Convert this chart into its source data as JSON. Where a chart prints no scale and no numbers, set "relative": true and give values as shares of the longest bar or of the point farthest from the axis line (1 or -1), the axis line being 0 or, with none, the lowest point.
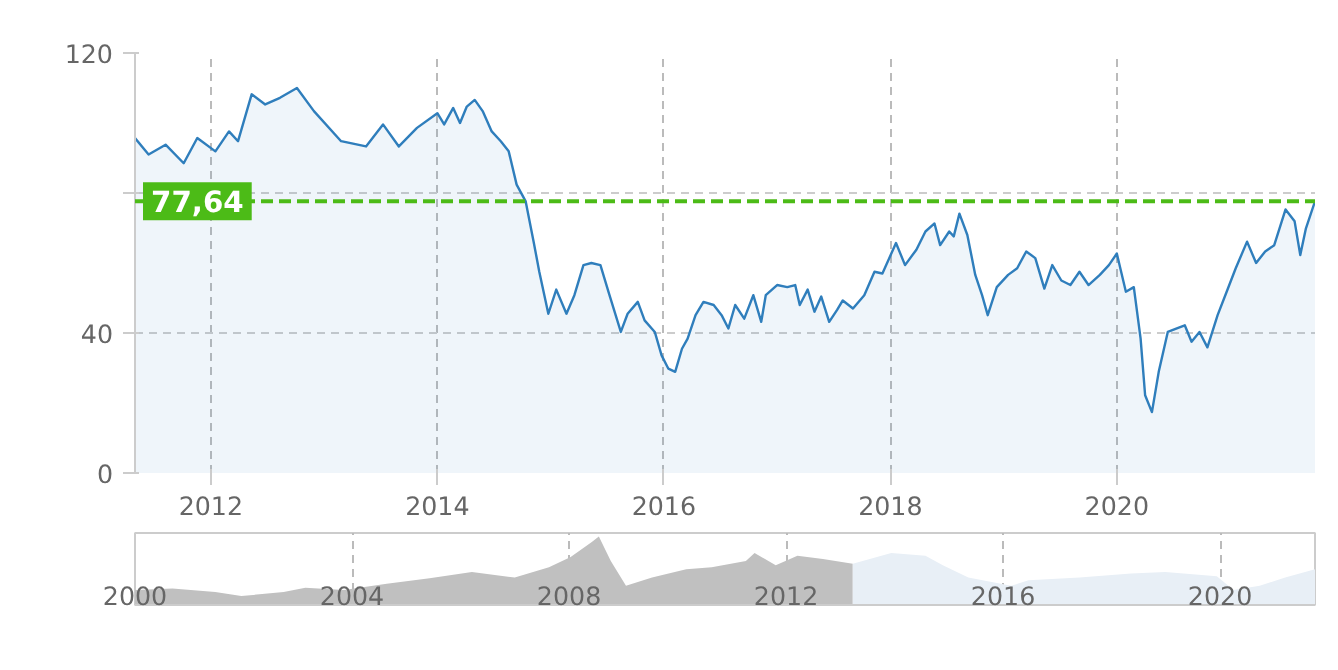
{
  "chart_data": [
    {
      "type": "area",
      "x": [
        2011.33,
        2011.45,
        2011.6,
        2011.76,
        2011.88,
        2012.04,
        2012.16,
        2012.24,
        2012.36,
        2012.48,
        2012.61,
        2012.76,
        2012.91,
        2013.15,
        2013.37,
        2013.52,
        2013.66,
        2013.82,
        2014.0,
        2014.06,
        2014.14,
        2014.2,
        2014.26,
        2014.33,
        2014.4,
        2014.48,
        2014.56,
        2014.63,
        2014.7,
        2014.78,
        2014.85,
        2014.9,
        2014.98,
        2015.05,
        2015.14,
        2015.21,
        2015.29,
        2015.36,
        2015.44,
        2015.52,
        2015.62,
        2015.68,
        2015.77,
        2015.83,
        2015.92,
        2015.98,
        2016.04,
        2016.1,
        2016.16,
        2016.21,
        2016.28,
        2016.35,
        2016.44,
        2016.51,
        2016.57,
        2016.63,
        2016.71,
        2016.79,
        2016.86,
        2016.9,
        2017.0,
        2017.09,
        2017.16,
        2017.2,
        2017.27,
        2017.33,
        2017.39,
        2017.46,
        2017.53,
        2017.58,
        2017.67,
        2017.77,
        2017.86,
        2017.93,
        2018.05,
        2018.13,
        2018.23,
        2018.31,
        2018.39,
        2018.44,
        2018.52,
        2018.56,
        2018.61,
        2018.68,
        2018.75,
        2018.81,
        2018.86,
        2018.94,
        2019.04,
        2019.12,
        2019.2,
        2019.28,
        2019.36,
        2019.43,
        2019.51,
        2019.59,
        2019.67,
        2019.75,
        2019.85,
        2019.93,
        2020.0,
        2020.08,
        2020.15,
        2020.21,
        2020.25,
        2020.31,
        2020.37,
        2020.45,
        2020.53,
        2020.6,
        2020.66,
        2020.73,
        2020.8,
        2020.89,
        2020.97,
        2021.05,
        2021.15,
        2021.23,
        2021.31,
        2021.39,
        2021.49,
        2021.57,
        2021.62,
        2021.67,
        2021.75
      ],
      "series": [
        {
          "color": "#2f7ebc",
          "values": [
            95.7,
            91,
            93.8,
            88.5,
            95.7,
            91.9,
            97.6,
            94.8,
            108.2,
            105.3,
            107.2,
            110,
            103.4,
            94.8,
            93.3,
            99.6,
            93.3,
            98.6,
            102.8,
            99.6,
            104.3,
            100,
            104.7,
            106.6,
            103.4,
            97.6,
            94.8,
            91.9,
            82.4,
            77.6,
            66.1,
            57.5,
            45.5,
            52.4,
            45.5,
            50.8,
            59.4,
            60,
            59.4,
            50.8,
            40.3,
            45.5,
            48.9,
            43.6,
            40.3,
            33.6,
            29.8,
            28.9,
            35.5,
            38.4,
            45.1,
            48.9,
            48,
            45.1,
            41.3,
            48,
            44.1,
            50.8,
            43.2,
            50.8,
            53.7,
            53.1,
            53.7,
            48,
            52.4,
            46.1,
            50.4,
            43.2,
            46.6,
            49.3,
            47,
            50.8,
            57.5,
            57,
            65.7,
            59.4,
            63.8,
            69,
            71.3,
            65.1,
            69,
            67.6,
            74.1,
            68,
            56.6,
            50.8,
            45.1,
            53.1,
            56.6,
            58.5,
            63.3,
            61.4,
            52.7,
            59.4,
            55,
            53.7,
            57.5,
            53.7,
            56.6,
            59.4,
            62.7,
            51.8,
            53.1,
            38.4,
            22.2,
            17.4,
            28.9,
            40.3,
            41.3,
            42.2,
            37.5,
            40.3,
            35.9,
            45.1,
            51.8,
            58.5,
            66.1,
            60,
            63.3,
            65.1,
            75.3,
            71.9,
            62.3,
            69.9,
            77.64
          ]
        }
      ],
      "xlim": [
        2011.33,
        2021.75
      ],
      "xticks": [
        2012,
        2014,
        2016,
        2018,
        2020
      ],
      "ylim": [
        0,
        120
      ],
      "yticks": [
        0,
        40,
        {
          "value": 80,
          "label": null
        },
        120
      ],
      "grid": true,
      "ref_lines": [
        {
          "axis": "y",
          "value": 77.64,
          "label": "77,64",
          "color": "#4cbb17",
          "line_style": "dashed"
        }
      ]
    },
    {
      "type": "area",
      "relative": true,
      "xlim": [
        2000,
        2021.75
      ],
      "xticks": [
        2000,
        2004,
        2008,
        2012,
        2016,
        2020
      ],
      "grid": "x",
      "series": [
        {
          "color": "#c0c0c0",
          "x": [
            2000.0,
            2000.69,
            2001.48,
            2001.96,
            2002.74,
            2003.14,
            2003.85,
            2004.64,
            2005.43,
            2006.21,
            2007.0,
            2007.63,
            2008.03,
            2008.42,
            2008.55,
            2008.77,
            2009.05,
            2009.53,
            2010.16,
            2010.63,
            2011.26,
            2011.42,
            2011.81,
            2012.21,
            2012.68,
            2013.23
          ],
          "values": [
            0.22,
            0.24,
            0.19,
            0.13,
            0.19,
            0.25,
            0.22,
            0.31,
            0.39,
            0.48,
            0.4,
            0.55,
            0.7,
            0.92,
            1,
            0.64,
            0.28,
            0.4,
            0.52,
            0.55,
            0.64,
            0.76,
            0.58,
            0.72,
            0.67,
            0.6
          ]
        },
        {
          "color": "#e8eff6",
          "x": [
            2013.23,
            2013.94,
            2014.57,
            2014.89,
            2015.36,
            2016.15,
            2016.47,
            2017.41,
            2018.36,
            2018.99,
            2019.94,
            2020.25,
            2020.73,
            2021.2,
            2021.75
          ],
          "values": [
            0.6,
            0.76,
            0.72,
            0.58,
            0.4,
            0.28,
            0.36,
            0.4,
            0.46,
            0.48,
            0.42,
            0.22,
            0.28,
            0.4,
            0.52
          ]
        }
      ]
    }
  ]
}
